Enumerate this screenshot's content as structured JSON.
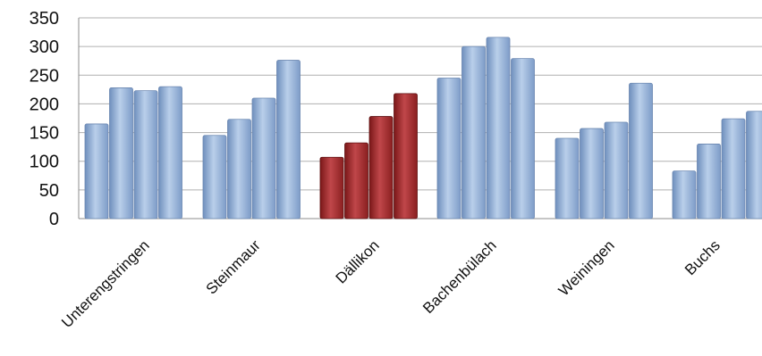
{
  "chart_data": {
    "type": "bar",
    "title": "",
    "xlabel": "",
    "ylabel": "",
    "ylim": [
      0,
      350
    ],
    "yticks": [
      0,
      50,
      100,
      150,
      200,
      250,
      300,
      350
    ],
    "grid": true,
    "legend": "none",
    "categories": [
      "Unterengstringen",
      "Steinmaur",
      "Dällikon",
      "Bachenbülach",
      "Weiningen",
      "Buchs"
    ],
    "bars_per_category": 4,
    "values": [
      [
        165,
        228,
        223,
        230
      ],
      [
        145,
        173,
        210,
        276
      ],
      [
        107,
        132,
        178,
        218
      ],
      [
        245,
        300,
        316,
        279
      ],
      [
        140,
        157,
        168,
        236
      ],
      [
        83,
        130,
        174,
        187
      ]
    ],
    "highlight_category": "Dällikon",
    "colors": {
      "default_bar": "#95b3d7",
      "highlight_bar": "#a3292a",
      "grid": "#b0b0b0"
    }
  }
}
